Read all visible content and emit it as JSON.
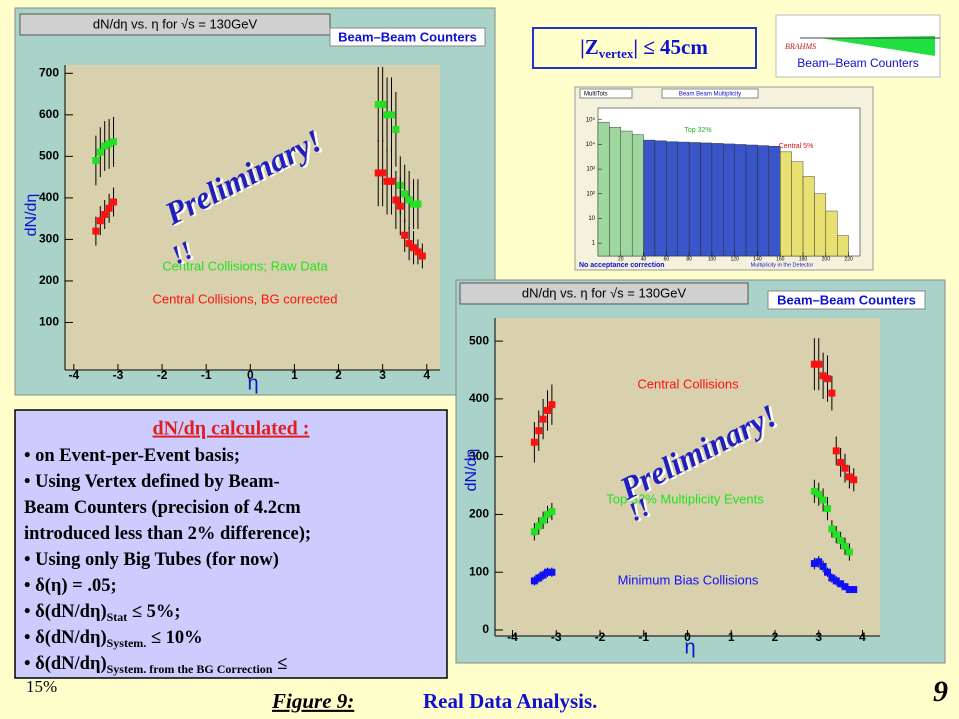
{
  "chart_data": [
    {
      "type": "scatter",
      "title": "dN/dη vs.  η  for √s = 130GeV",
      "box_label": "Beam–Beam Counters",
      "x_label": "η",
      "y_label": "dN/dη",
      "annotations": [
        "Preliminary!",
        "!!"
      ],
      "xlim": [
        -4.2,
        4.3
      ],
      "ylim": [
        0,
        720
      ],
      "xticks": [
        -4,
        -3,
        -2,
        -1,
        0,
        1,
        2,
        3,
        4
      ],
      "yticks": [
        100,
        200,
        300,
        400,
        500,
        600,
        700
      ],
      "series": [
        {
          "name": "Central Collisions; Raw Data",
          "color": "#22e022",
          "x": [
            -3.5,
            -3.4,
            -3.3,
            -3.2,
            -3.1,
            2.9,
            3.0,
            3.1,
            3.2,
            3.3,
            3.4,
            3.5,
            3.6,
            3.7,
            3.8
          ],
          "values": [
            490,
            510,
            525,
            530,
            535,
            625,
            625,
            600,
            600,
            565,
            430,
            410,
            395,
            385,
            385
          ],
          "errors": [
            60,
            60,
            60,
            60,
            60,
            90,
            90,
            90,
            90,
            90,
            70,
            70,
            70,
            60,
            60
          ]
        },
        {
          "name": "Central Collisions, BG corrected",
          "color": "#ff1010",
          "x": [
            -3.5,
            -3.4,
            -3.3,
            -3.2,
            -3.1,
            2.9,
            3.0,
            3.1,
            3.2,
            3.3,
            3.4,
            3.5,
            3.6,
            3.7,
            3.8,
            3.9
          ],
          "values": [
            320,
            345,
            360,
            375,
            390,
            460,
            460,
            440,
            440,
            395,
            380,
            310,
            290,
            280,
            270,
            260
          ],
          "errors": [
            35,
            35,
            35,
            35,
            35,
            80,
            80,
            80,
            80,
            70,
            70,
            40,
            40,
            40,
            30,
            30
          ]
        }
      ]
    },
    {
      "type": "scatter",
      "title": "dN/dη vs.  η  for √s = 130GeV",
      "box_label": "Beam–Beam Counters",
      "x_label": "η",
      "y_label": "dN/dη",
      "annotations": [
        "Preliminary!",
        "!!"
      ],
      "xlim": [
        -4.4,
        4.4
      ],
      "ylim": [
        0,
        540
      ],
      "xticks": [
        -4,
        -3,
        -2,
        -1,
        0,
        1,
        2,
        3,
        4
      ],
      "yticks": [
        0,
        100,
        200,
        300,
        400,
        500
      ],
      "series": [
        {
          "name": "Central Collisions",
          "color": "#ff1010",
          "x": [
            -3.5,
            -3.4,
            -3.3,
            -3.2,
            -3.1,
            2.9,
            3.0,
            3.1,
            3.2,
            3.3,
            3.4,
            3.5,
            3.6,
            3.7,
            3.8
          ],
          "values": [
            325,
            345,
            365,
            380,
            390,
            460,
            460,
            440,
            435,
            410,
            310,
            290,
            280,
            265,
            260
          ],
          "errors": [
            35,
            35,
            35,
            35,
            35,
            45,
            45,
            40,
            40,
            30,
            25,
            25,
            25,
            20,
            20
          ]
        },
        {
          "name": "Top 32% Multiplicity Events",
          "color": "#22e022",
          "x": [
            -3.5,
            -3.4,
            -3.3,
            -3.2,
            -3.1,
            2.9,
            3.0,
            3.1,
            3.2,
            3.3,
            3.4,
            3.5,
            3.6,
            3.7
          ],
          "values": [
            170,
            180,
            190,
            200,
            205,
            240,
            235,
            225,
            210,
            175,
            165,
            155,
            145,
            135
          ],
          "errors": [
            15,
            15,
            15,
            15,
            15,
            20,
            20,
            20,
            20,
            15,
            15,
            15,
            15,
            15
          ]
        },
        {
          "name": "Minimum Bias Collisions",
          "color": "#1010ff",
          "x": [
            -3.5,
            -3.4,
            -3.3,
            -3.2,
            -3.1,
            2.9,
            3.0,
            3.1,
            3.2,
            3.3,
            3.4,
            3.5,
            3.6,
            3.7,
            3.8
          ],
          "values": [
            85,
            90,
            95,
            100,
            100,
            115,
            118,
            110,
            100,
            90,
            85,
            80,
            75,
            70,
            70
          ],
          "errors": [
            8,
            8,
            8,
            8,
            8,
            10,
            10,
            10,
            8,
            8,
            8,
            6,
            6,
            6,
            6
          ]
        }
      ]
    },
    {
      "type": "histogram",
      "title": "Beam  Beam Multiplicity",
      "stats_label": "MultiTots",
      "x_label": "Multiplicity in the Detector",
      "annotations": [
        "Top 32%",
        "Central 5%",
        "No acceptance correction"
      ],
      "log_y": true,
      "xlim": [
        0,
        230
      ],
      "ylim": [
        0.3,
        300000
      ],
      "xticks": [
        20,
        40,
        60,
        80,
        100,
        120,
        140,
        160,
        180,
        200,
        220
      ],
      "yticks": [
        1,
        10,
        {
          "value": 100,
          "label": "10²"
        },
        {
          "value": 1000,
          "label": "10³"
        },
        {
          "value": 10000,
          "label": "10⁴"
        },
        {
          "value": 100000,
          "label": "10⁵"
        }
      ],
      "bins": [
        0,
        10,
        20,
        30,
        40,
        50,
        60,
        70,
        80,
        90,
        100,
        110,
        120,
        130,
        140,
        150,
        160,
        170,
        180,
        190,
        200,
        210,
        220
      ],
      "counts": [
        80000,
        50000,
        35000,
        25000,
        15000,
        14000,
        13000,
        12500,
        12000,
        11500,
        11000,
        10500,
        10000,
        9500,
        9000,
        8500,
        5000,
        2000,
        500,
        100,
        20,
        2
      ],
      "bar_colors": [
        "#9fd89f",
        "#9fd89f",
        "#9fd89f",
        "#9fd89f",
        "#3a55c8",
        "#3a55c8",
        "#3a55c8",
        "#3a55c8",
        "#3a55c8",
        "#3a55c8",
        "#3a55c8",
        "#3a55c8",
        "#3a55c8",
        "#3a55c8",
        "#3a55c8",
        "#3a55c8",
        "#e8e070",
        "#e8e070",
        "#e8e070",
        "#e8e070",
        "#e8e070",
        "#e8e070"
      ]
    }
  ],
  "vertex_cut": [
    "|Z",
    "vertex",
    "|  ≤  45cm"
  ],
  "logo": {
    "brand": "BRAHMS",
    "label": "Beam–Beam Counters"
  },
  "info_box": {
    "title": "dN/dη calculated :",
    "lines": [
      [
        "• on Event-per-Event basis;"
      ],
      [
        "• Using Vertex defined by Beam-"
      ],
      [
        "Beam Counters (precision of 4.2cm"
      ],
      [
        "introduced less than 2% difference);"
      ],
      [
        "• Using only Big Tubes (for now)"
      ],
      [
        "•   δ(η) = .05;"
      ],
      [
        "•   δ(dN/dη)",
        "Stat",
        "  ≤  5%;"
      ],
      [
        "•   δ(dN/dη)",
        "System.",
        "  ≤ 10%"
      ],
      [
        "•   δ(dN/dη)",
        "System. from the BG Correction",
        "  ≤"
      ]
    ],
    "overflow": "15%"
  },
  "footer": {
    "figure": "Figure 9:",
    "caption": "Real Data Analysis.",
    "page": "9"
  }
}
